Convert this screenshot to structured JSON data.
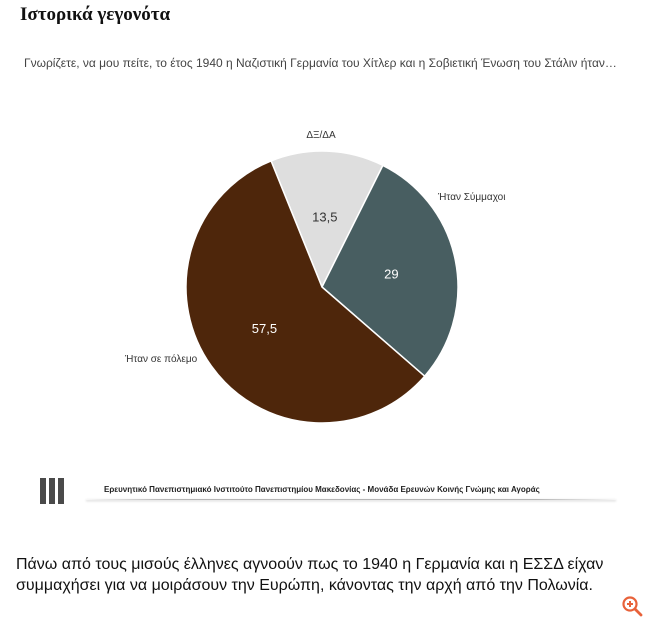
{
  "header": {
    "title": "Ιστορικά γεγονότα"
  },
  "chart_data": {
    "type": "pie",
    "title": "Γνωρίζετε, να μου πείτε, το έτος 1940 η Ναζιστική Γερμανία του Χίτλερ και η Σοβιετική Ένωση του Στάλιν ήταν…",
    "slices": [
      {
        "label": "ΔΞ/ΔΑ",
        "value": 13.5,
        "value_label": "13,5",
        "color": "#dedede",
        "text_color": "#333333"
      },
      {
        "label": "Ήταν Σύμμαχοι",
        "value": 29,
        "value_label": "29",
        "color": "#485e61",
        "text_color": "#ffffff"
      },
      {
        "label": "Ήταν σε πόλεμο",
        "value": 57.5,
        "value_label": "57,5",
        "color": "#4e260b",
        "text_color": "#ffffff"
      }
    ],
    "legend": "none"
  },
  "footer": {
    "source": "Ερευνητικό Πανεπιστημιακό Ινστιτούτο Πανεπιστημίου Μακεδονίας - Μονάδα Ερευνών Κοινής Γνώμης και Αγοράς",
    "logo_icon": "bar-logo-icon"
  },
  "caption": {
    "text": "Πάνω από τους μισούς έλληνες αγνοούν πως το 1940 η Γερμανία και η ΕΣΣΔ είχαν συμμαχήσει για να μοιράσουν την Ευρώπη, κάνοντας την αρχή από την Πολωνία."
  },
  "controls": {
    "zoom_icon": "zoom-in-icon",
    "accent": "#e8623a"
  }
}
